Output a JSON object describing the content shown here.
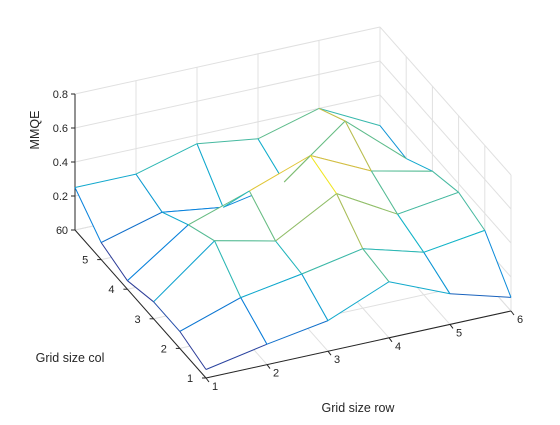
{
  "chart_data": {
    "type": "surface",
    "title": "",
    "xlabel": "Grid size row",
    "ylabel": "Grid size col",
    "zlabel": "MMQE",
    "x": [
      1,
      2,
      3,
      4,
      5,
      6
    ],
    "y": [
      1,
      2,
      3,
      4,
      5,
      6
    ],
    "z": [
      [
        0.05,
        0.12,
        0.18,
        0.33,
        0.18,
        0.08
      ],
      [
        0.1,
        0.22,
        0.28,
        0.35,
        0.25,
        0.3
      ],
      [
        0.1,
        0.38,
        0.3,
        0.5,
        0.3,
        0.35
      ],
      [
        0.05,
        0.3,
        0.42,
        0.55,
        0.38,
        0.3
      ],
      [
        0.1,
        0.2,
        0.15,
        0.22,
        0.5,
        0.2
      ],
      [
        0.25,
        0.25,
        0.35,
        0.3,
        0.4,
        0.22
      ]
    ],
    "xticks": [
      "1",
      "2",
      "3",
      "4",
      "5",
      "6"
    ],
    "yticks": [
      "1",
      "2",
      "3",
      "4",
      "5",
      "6"
    ],
    "zticks": [
      "0",
      "0.2",
      "0.4",
      "0.6",
      "0.8"
    ],
    "zlim": [
      0,
      0.8
    ],
    "grid": true,
    "colormap": "parula",
    "colors": {
      "axis": "#262626",
      "grid": "#e0e0e0",
      "background": "#ffffff"
    }
  }
}
